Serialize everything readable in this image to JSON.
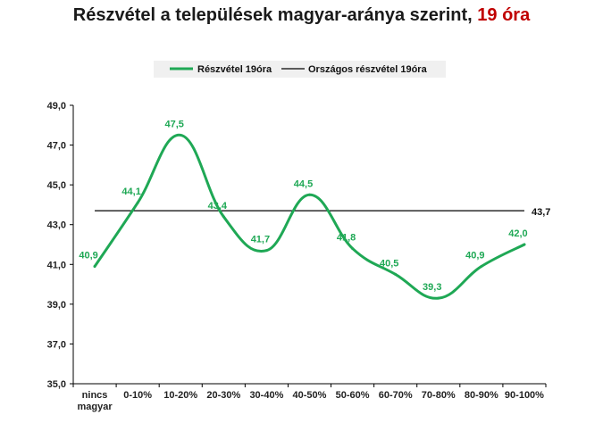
{
  "title": {
    "main": "Részvétel a települések magyar-aránya szerint,",
    "accent": "19 óra",
    "accent_color": "#c00000"
  },
  "chart_data": {
    "type": "line",
    "categories": [
      "nincs magyar",
      "0-10%",
      "10-20%",
      "20-30%",
      "30-40%",
      "40-50%",
      "50-60%",
      "60-70%",
      "70-80%",
      "80-90%",
      "90-100%"
    ],
    "category_lines": [
      [
        "nincs",
        "magyar"
      ],
      [
        "0-10%"
      ],
      [
        "10-20%"
      ],
      [
        "20-30%"
      ],
      [
        "30-40%"
      ],
      [
        "40-50%"
      ],
      [
        "50-60%"
      ],
      [
        "60-70%"
      ],
      [
        "70-80%"
      ],
      [
        "80-90%"
      ],
      [
        "90-100%"
      ]
    ],
    "series": [
      {
        "name": "Részvétel 19óra",
        "color": "#1fa855",
        "values": [
          40.9,
          44.1,
          47.5,
          43.4,
          41.7,
          44.5,
          41.8,
          40.5,
          39.3,
          40.9,
          42.0
        ],
        "labels": [
          "40,9",
          "44,1",
          "47,5",
          "43,4",
          "41,7",
          "44,5",
          "41,8",
          "40,5",
          "39,3",
          "40,9",
          "42,0"
        ]
      }
    ],
    "reference_line": {
      "name": "Országos részvétel 19óra",
      "color": "#000000",
      "value": 43.7,
      "label": "43,7"
    },
    "ylim": [
      35,
      49
    ],
    "yticks": [
      35,
      37,
      39,
      41,
      43,
      45,
      47,
      49
    ],
    "ytick_labels": [
      "35,0",
      "37,0",
      "39,0",
      "41,0",
      "43,0",
      "45,0",
      "47,0",
      "49,0"
    ],
    "legend_position": "top",
    "grid": false
  }
}
